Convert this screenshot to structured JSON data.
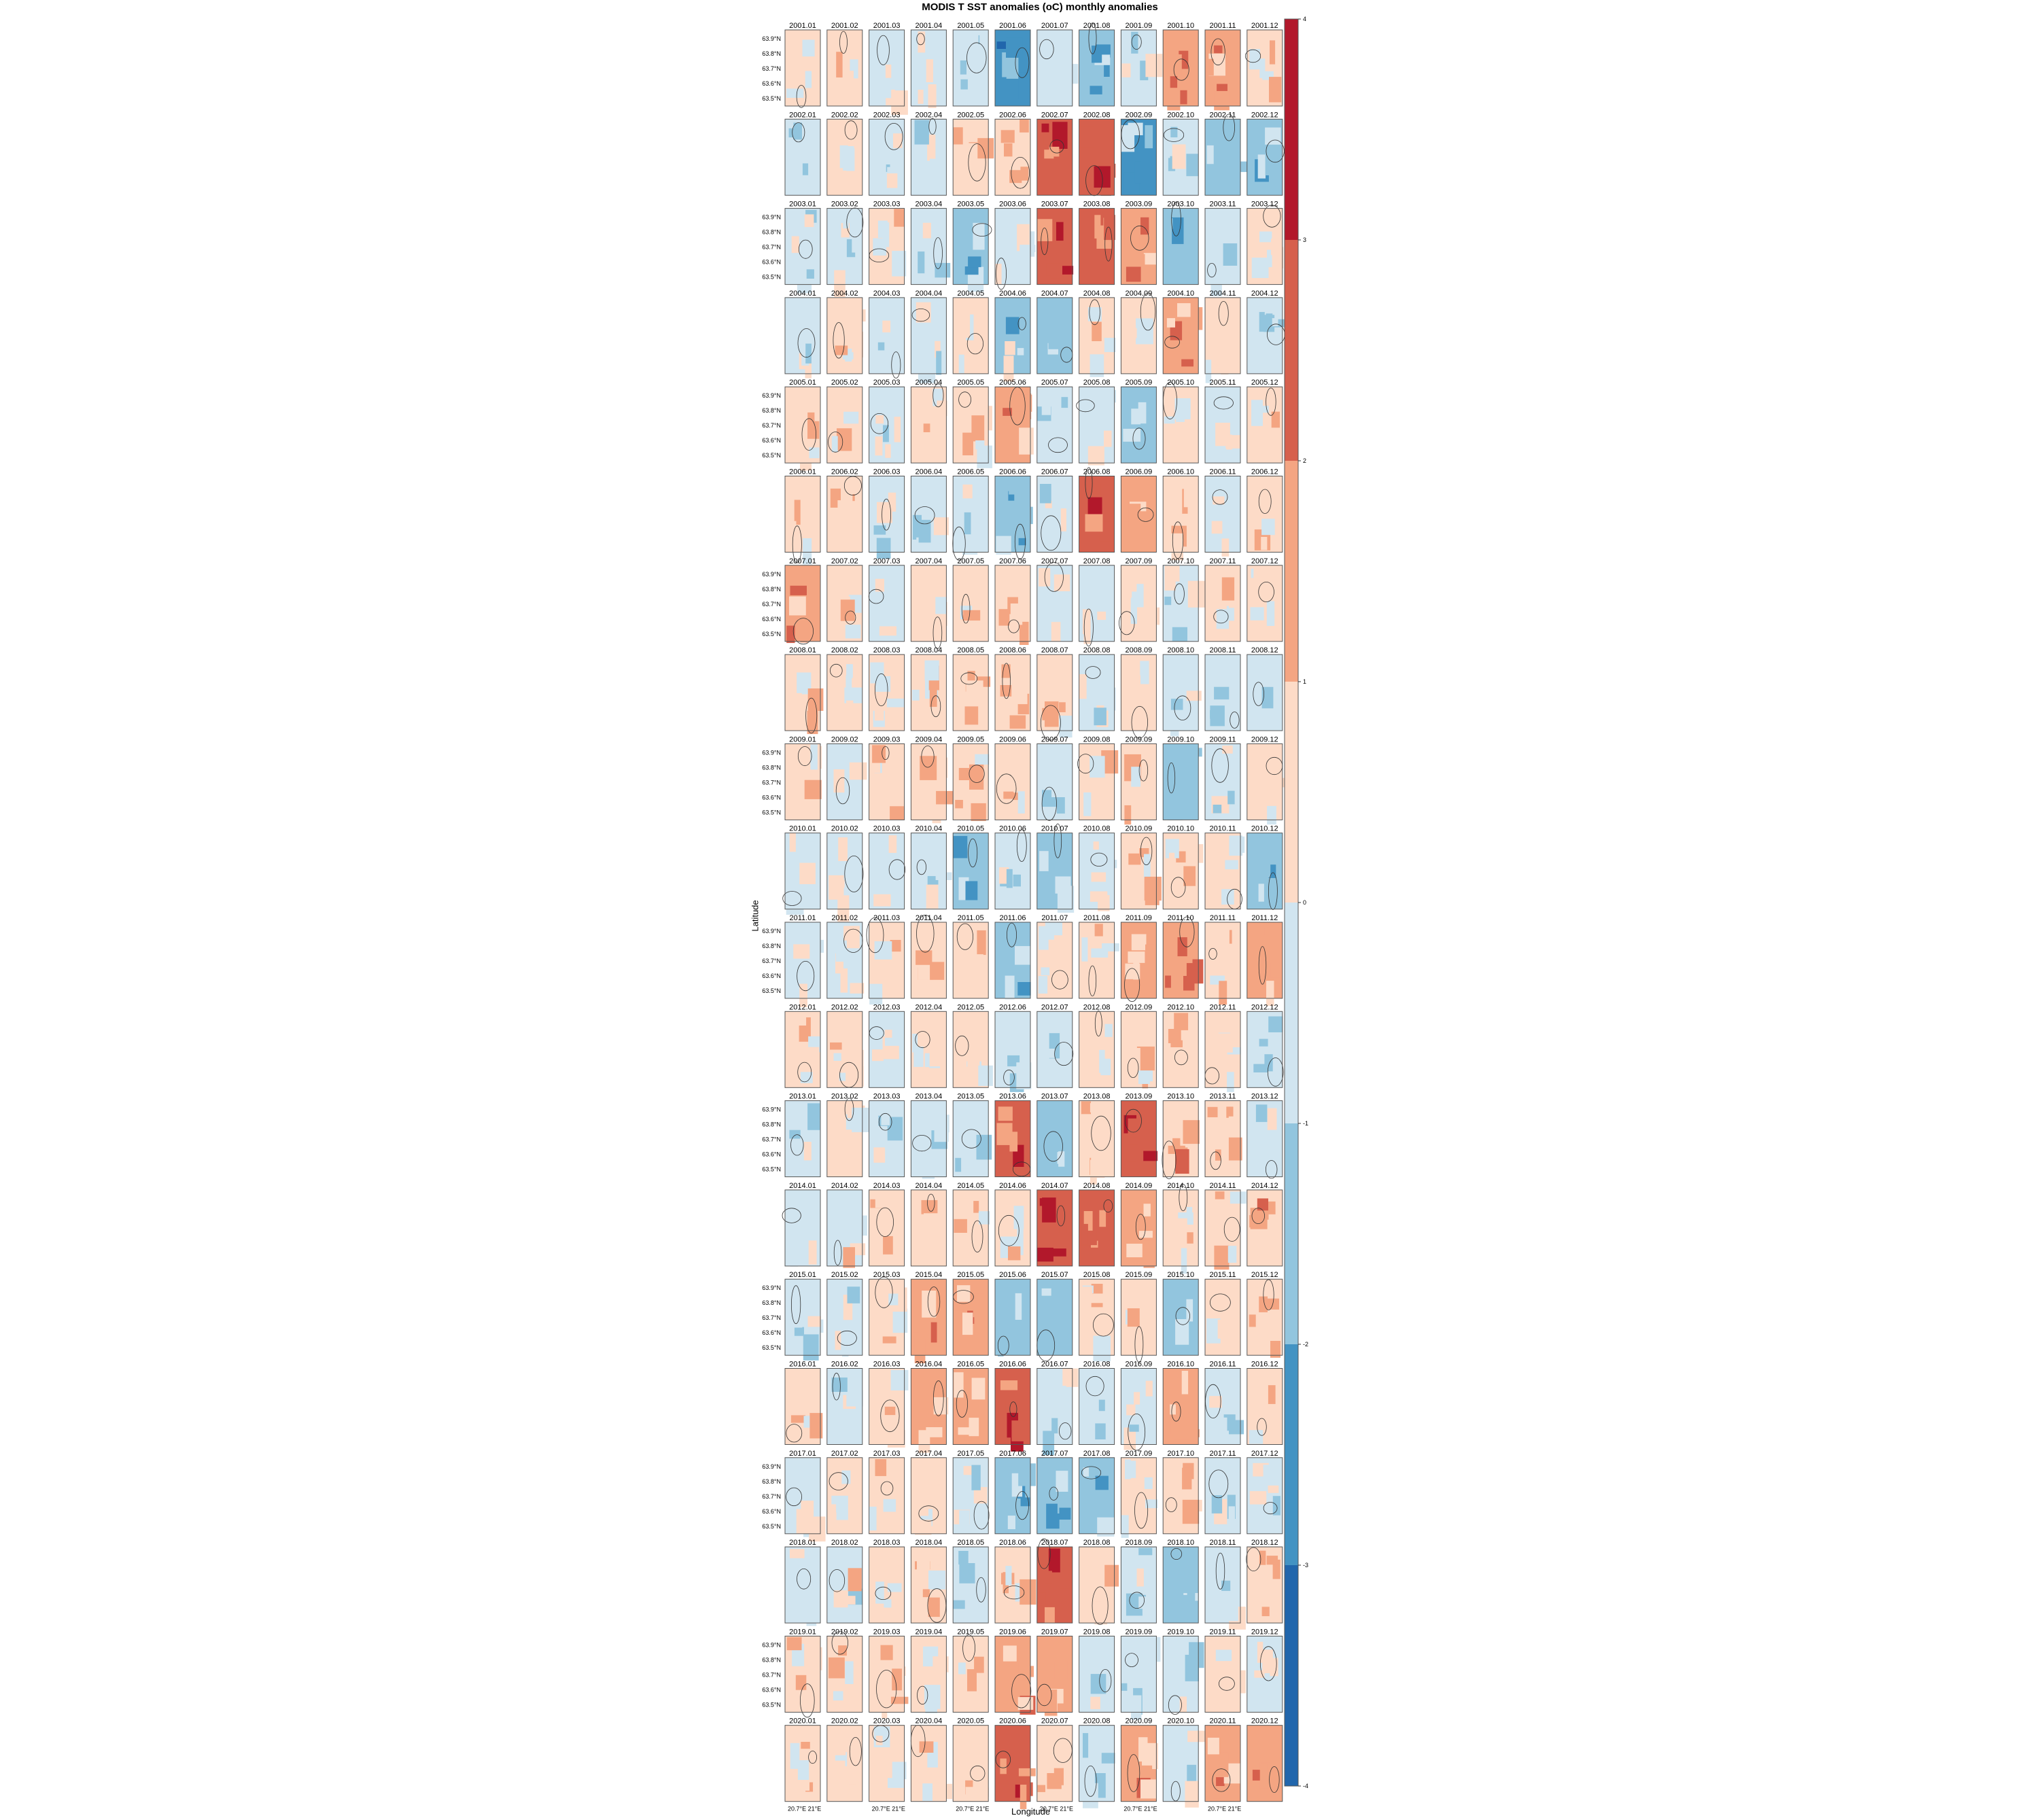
{
  "chart_data": {
    "type": "heatmap",
    "title": "MODIS T SST anomalies (oC) monthly anomalies",
    "xlabel": "Longitude",
    "ylabel": "Latitude",
    "panel_labels_note": "one panel per month, 2001.01 to 2020.12",
    "years": [
      "2001",
      "2002",
      "2003",
      "2004",
      "2005",
      "2006",
      "2007",
      "2008",
      "2009",
      "2010",
      "2011",
      "2012",
      "2013",
      "2014",
      "2015",
      "2016",
      "2017",
      "2018",
      "2019",
      "2020"
    ],
    "months": [
      "01",
      "02",
      "03",
      "04",
      "05",
      "06",
      "07",
      "08",
      "09",
      "10",
      "11",
      "12"
    ],
    "y_tick_labels": [
      "63.9°N",
      "63.8°N",
      "63.7°N",
      "63.6°N",
      "63.5°N"
    ],
    "x_tick_labels": [
      "20.7°E",
      "21°E"
    ],
    "colorbar": {
      "ticks": [
        "4",
        "3",
        "2",
        "1",
        "0",
        "-1",
        "-2",
        "-3",
        "-4"
      ],
      "range": [
        -4,
        4
      ],
      "colors": [
        "#b2182b",
        "#d6604d",
        "#f4a582",
        "#fddbc7",
        "#d1e5f0",
        "#92c5de",
        "#4393c3",
        "#2166ac"
      ]
    },
    "panel_anomaly_levels": [
      [
        0.3,
        0.4,
        0.0,
        -0.2,
        -0.6,
        -2.2,
        -0.8,
        -1.8,
        -0.7,
        1.6,
        1.6,
        0.1
      ],
      [
        -0.3,
        0.1,
        -0.3,
        -0.3,
        0.9,
        0.8,
        2.6,
        2.7,
        -2.0,
        -0.9,
        -1.5,
        -1.3
      ],
      [
        -0.2,
        -0.2,
        0.2,
        -0.6,
        -1.0,
        0.0,
        2.5,
        2.3,
        1.2,
        -1.0,
        -0.7,
        0.3
      ],
      [
        -0.1,
        0.4,
        -0.2,
        -0.3,
        0.4,
        -1.0,
        -1.1,
        0.6,
        0.2,
        1.4,
        0.2,
        -0.7
      ],
      [
        0.4,
        0.2,
        -0.2,
        0.3,
        0.5,
        1.5,
        -0.9,
        -0.6,
        -1.2,
        0.6,
        -0.2,
        0.5
      ],
      [
        0.4,
        0.3,
        0.0,
        -0.8,
        -0.3,
        -1.8,
        -0.7,
        2.6,
        1.5,
        0.8,
        -0.5,
        0.5
      ],
      [
        1.6,
        0.3,
        -0.2,
        0.5,
        0.6,
        1.0,
        -0.3,
        -0.3,
        0.2,
        -0.5,
        0.2,
        0.4
      ],
      [
        0.4,
        0.4,
        0.3,
        0.3,
        0.7,
        0.8,
        0.6,
        -0.6,
        0.4,
        -0.4,
        -0.9,
        -0.4
      ],
      [
        0.2,
        -0.2,
        0.3,
        0.3,
        1.0,
        0.9,
        -0.8,
        0.3,
        0.9,
        -1.3,
        -0.4,
        0.4
      ],
      [
        -0.3,
        0.0,
        0.0,
        -0.6,
        -1.5,
        -0.8,
        -1.0,
        -0.3,
        0.8,
        0.6,
        0.5,
        -1.2
      ],
      [
        -0.1,
        -0.1,
        0.4,
        0.7,
        1.0,
        -1.6,
        0.4,
        0.7,
        1.3,
        2.0,
        0.5,
        1.3
      ],
      [
        0.3,
        0.2,
        -0.2,
        0.4,
        0.6,
        -0.3,
        -0.3,
        0.6,
        0.8,
        0.8,
        0.4,
        -0.9
      ],
      [
        -0.7,
        0.4,
        -0.2,
        -0.3,
        -0.5,
        2.2,
        -1.1,
        0.5,
        2.5,
        1.0,
        0.5,
        -0.3
      ],
      [
        0.0,
        0.0,
        0.5,
        0.9,
        0.5,
        0.3,
        3.0,
        2.1,
        1.1,
        0.5,
        0.5,
        1.0
      ],
      [
        -0.2,
        -0.2,
        0.5,
        1.3,
        1.3,
        -1.0,
        -1.1,
        0.4,
        0.4,
        -1.0,
        0.4,
        1.0
      ],
      [
        0.4,
        0.0,
        0.4,
        1.1,
        1.1,
        2.3,
        -0.8,
        -0.9,
        -0.4,
        1.2,
        -0.5,
        0.6
      ],
      [
        -0.3,
        0.3,
        0.5,
        0.8,
        -0.7,
        -1.8,
        -1.5,
        -1.2,
        0.2,
        1.0,
        -0.6,
        -0.3
      ],
      [
        -0.2,
        0.0,
        0.4,
        0.6,
        -0.7,
        0.6,
        2.7,
        0.8,
        -0.9,
        -1.4,
        -0.3,
        1.0
      ],
      [
        0.4,
        0.5,
        0.6,
        0.4,
        0.7,
        1.5,
        1.3,
        -0.8,
        -0.8,
        -0.3,
        0.3,
        -0.4
      ],
      [
        0.3,
        0.3,
        0.4,
        0.3,
        0.7,
        2.3,
        0.7,
        -0.8,
        1.2,
        -0.3,
        1.6,
        1.7
      ]
    ]
  }
}
